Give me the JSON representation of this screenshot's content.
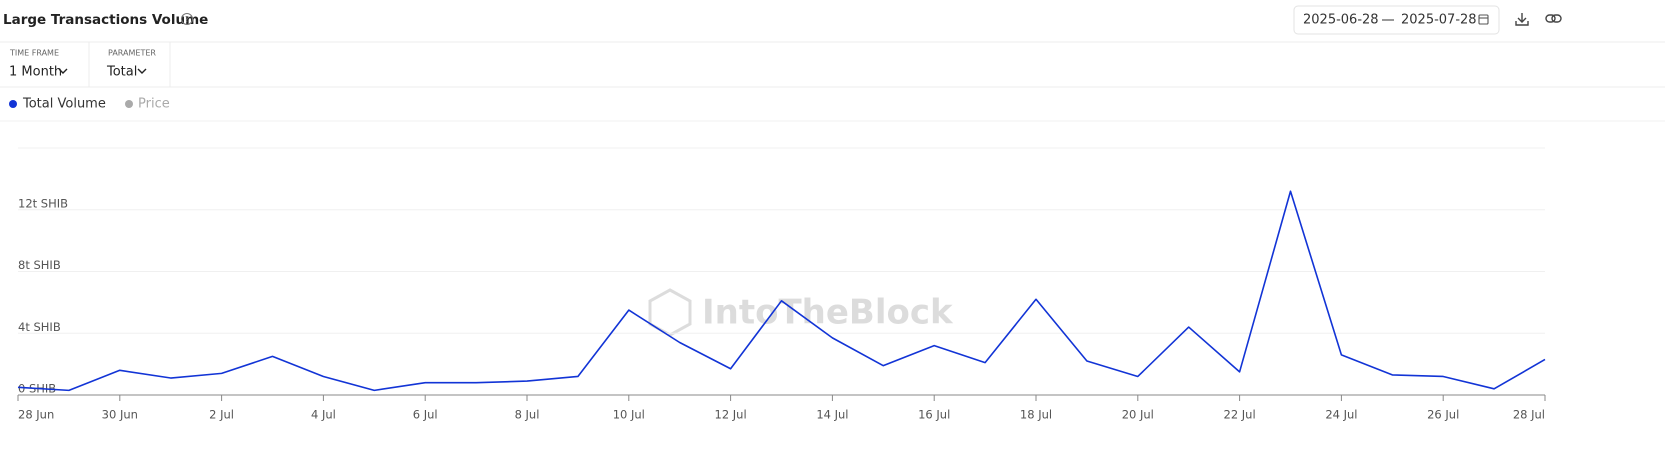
{
  "ui": {
    "title": "Large Transactions Volume",
    "date_from": "2025-06-28",
    "date_to": "2025-07-28",
    "time_frame_label": "TIME FRAME",
    "time_frame": "1 Month",
    "parameter_label": "PARAMETER",
    "parameter": "Total",
    "inactive_legend": {
      "name": "Price",
      "color": "#aaaaaa"
    },
    "watermark": "IntoTheBlock"
  },
  "chart_data": {
    "type": "line",
    "categories": [
      "28 Jun",
      null,
      "30 Jun",
      null,
      "2 Jul",
      null,
      "4 Jul",
      null,
      "6 Jul",
      null,
      "8 Jul",
      null,
      "10 Jul",
      null,
      "12 Jul",
      null,
      "14 Jul",
      null,
      "16 Jul",
      null,
      "18 Jul",
      null,
      "20 Jul",
      null,
      "22 Jul",
      null,
      "24 Jul",
      null,
      "26 Jul",
      null,
      "28 Jul"
    ],
    "series": [
      {
        "name": "Total Volume",
        "color": "#1234d6",
        "values": [
          0.5,
          0.3,
          1.6,
          1.1,
          1.4,
          2.5,
          1.2,
          0.3,
          0.8,
          0.8,
          0.9,
          1.2,
          5.5,
          3.4,
          1.7,
          6.1,
          3.7,
          1.9,
          3.2,
          2.1,
          6.2,
          2.2,
          1.2,
          4.4,
          1.5,
          13.2,
          2.6,
          1.3,
          1.2,
          0.4,
          2.3
        ]
      }
    ],
    "ylim": [
      0,
      16
    ],
    "yticks": [
      {
        "value": 0,
        "label": "0 SHIB"
      },
      {
        "value": 4,
        "label": "4t SHIB"
      },
      {
        "value": 8,
        "label": "8t SHIB"
      },
      {
        "value": 12,
        "label": "12t SHIB"
      }
    ],
    "grid": true
  }
}
